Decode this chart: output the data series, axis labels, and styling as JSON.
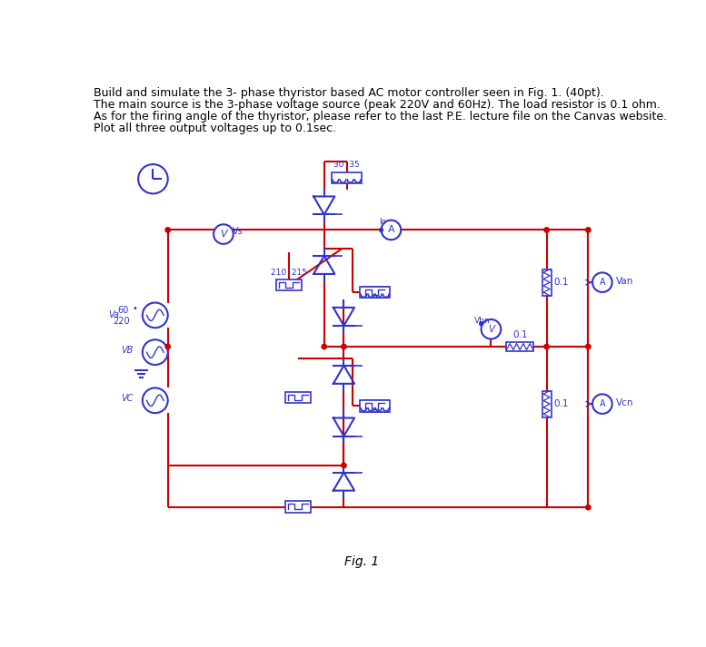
{
  "title_text": [
    "Build and simulate the 3- phase thyristor based AC motor controller seen in Fig. 1. (40pt).",
    "The main source is the 3-phase voltage source (peak 220V and 60Hz). The load resistor is 0.1 ohm.",
    "As for the firing angle of the thyristor, please refer to the last P.E. lecture file on the Canvas website.",
    "Plot all three output voltages up to 0.1sec."
  ],
  "fig_label": "Fig. 1",
  "wire_color": "#cc0000",
  "component_color": "#3333cc",
  "bg_color": "#ffffff",
  "text_color": "#000000"
}
